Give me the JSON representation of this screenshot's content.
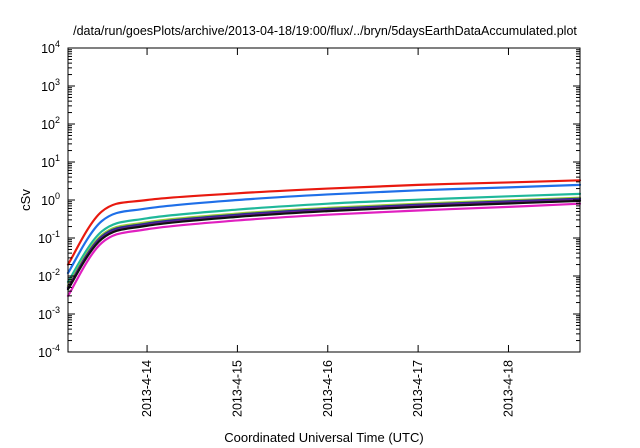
{
  "chart_data": {
    "type": "line",
    "title": "/data/run/goesPlots/archive/2013-04-18/19:00/flux/../bryn/5daysEarthDataAccumulated.plot",
    "xlabel": "Coordinated Universal Time (UTC)",
    "ylabel": "cSv",
    "x_scale": "time",
    "y_scale": "log",
    "xlim": [
      "2013-04-13T03:00",
      "2013-04-18T19:00"
    ],
    "ylim": [
      0.0001,
      10000
    ],
    "grid": false,
    "legend": "none",
    "x_ticks": [
      "2013-4-14",
      "2013-4-15",
      "2013-4-16",
      "2013-4-17",
      "2013-4-18"
    ],
    "y_ticks": [
      {
        "base": "10",
        "exp": "-4"
      },
      {
        "base": "10",
        "exp": "-3"
      },
      {
        "base": "10",
        "exp": "-2"
      },
      {
        "base": "10",
        "exp": "-1"
      },
      {
        "base": "10",
        "exp": "0"
      },
      {
        "base": "10",
        "exp": "1"
      },
      {
        "base": "10",
        "exp": "2"
      },
      {
        "base": "10",
        "exp": "3"
      },
      {
        "base": "10",
        "exp": "4"
      }
    ],
    "series": [
      {
        "color": "#e8190f",
        "x": [
          "2013-04-13T03:00",
          "2013-04-13T12:00",
          "2013-04-14T00:00",
          "2013-04-15T00:00",
          "2013-04-16T00:00",
          "2013-04-17T00:00",
          "2013-04-18T00:00",
          "2013-04-18T19:00"
        ],
        "y": [
          0.02,
          0.5,
          1.0,
          1.5,
          2.0,
          2.5,
          2.9,
          3.3
        ]
      },
      {
        "color": "#1f6fe8",
        "x": [
          "2013-04-13T03:00",
          "2013-04-13T12:00",
          "2013-04-14T00:00",
          "2013-04-15T00:00",
          "2013-04-16T00:00",
          "2013-04-17T00:00",
          "2013-04-18T00:00",
          "2013-04-18T19:00"
        ],
        "y": [
          0.012,
          0.28,
          0.6,
          1.0,
          1.4,
          1.8,
          2.15,
          2.5
        ]
      },
      {
        "color": "#1fb89a",
        "x": [
          "2013-04-13T03:00",
          "2013-04-13T12:00",
          "2013-04-14T00:00",
          "2013-04-15T00:00",
          "2013-04-16T00:00",
          "2013-04-17T00:00",
          "2013-04-18T00:00",
          "2013-04-18T19:00"
        ],
        "y": [
          0.007,
          0.15,
          0.33,
          0.56,
          0.8,
          1.02,
          1.25,
          1.45
        ]
      },
      {
        "color": "#9acd32",
        "x": [
          "2013-04-13T03:00",
          "2013-04-13T12:00",
          "2013-04-14T00:00",
          "2013-04-15T00:00",
          "2013-04-16T00:00",
          "2013-04-17T00:00",
          "2013-04-18T00:00",
          "2013-04-18T19:00"
        ],
        "y": [
          0.0055,
          0.12,
          0.26,
          0.44,
          0.62,
          0.8,
          0.98,
          1.15
        ]
      },
      {
        "color": "#2b2f8f",
        "x": [
          "2013-04-13T03:00",
          "2013-04-13T12:00",
          "2013-04-14T00:00",
          "2013-04-15T00:00",
          "2013-04-16T00:00",
          "2013-04-17T00:00",
          "2013-04-18T00:00",
          "2013-04-18T19:00"
        ],
        "y": [
          0.005,
          0.11,
          0.24,
          0.41,
          0.58,
          0.75,
          0.92,
          1.08
        ]
      },
      {
        "color": "#6a1b9a",
        "x": [
          "2013-04-13T03:00",
          "2013-04-13T12:00",
          "2013-04-14T00:00",
          "2013-04-15T00:00",
          "2013-04-16T00:00",
          "2013-04-17T00:00",
          "2013-04-18T00:00",
          "2013-04-18T19:00"
        ],
        "y": [
          0.0048,
          0.1,
          0.22,
          0.38,
          0.54,
          0.7,
          0.86,
          1.0
        ]
      },
      {
        "color": "#111111",
        "x": [
          "2013-04-13T03:00",
          "2013-04-13T12:00",
          "2013-04-14T00:00",
          "2013-04-15T00:00",
          "2013-04-16T00:00",
          "2013-04-17T00:00",
          "2013-04-18T00:00",
          "2013-04-18T19:00"
        ],
        "y": [
          0.0045,
          0.095,
          0.21,
          0.36,
          0.51,
          0.66,
          0.81,
          0.95
        ]
      },
      {
        "color": "#e020c0",
        "x": [
          "2013-04-13T03:00",
          "2013-04-13T12:00",
          "2013-04-14T00:00",
          "2013-04-15T00:00",
          "2013-04-16T00:00",
          "2013-04-17T00:00",
          "2013-04-18T00:00",
          "2013-04-18T19:00"
        ],
        "y": [
          0.003,
          0.075,
          0.17,
          0.29,
          0.41,
          0.53,
          0.66,
          0.8
        ]
      }
    ]
  }
}
